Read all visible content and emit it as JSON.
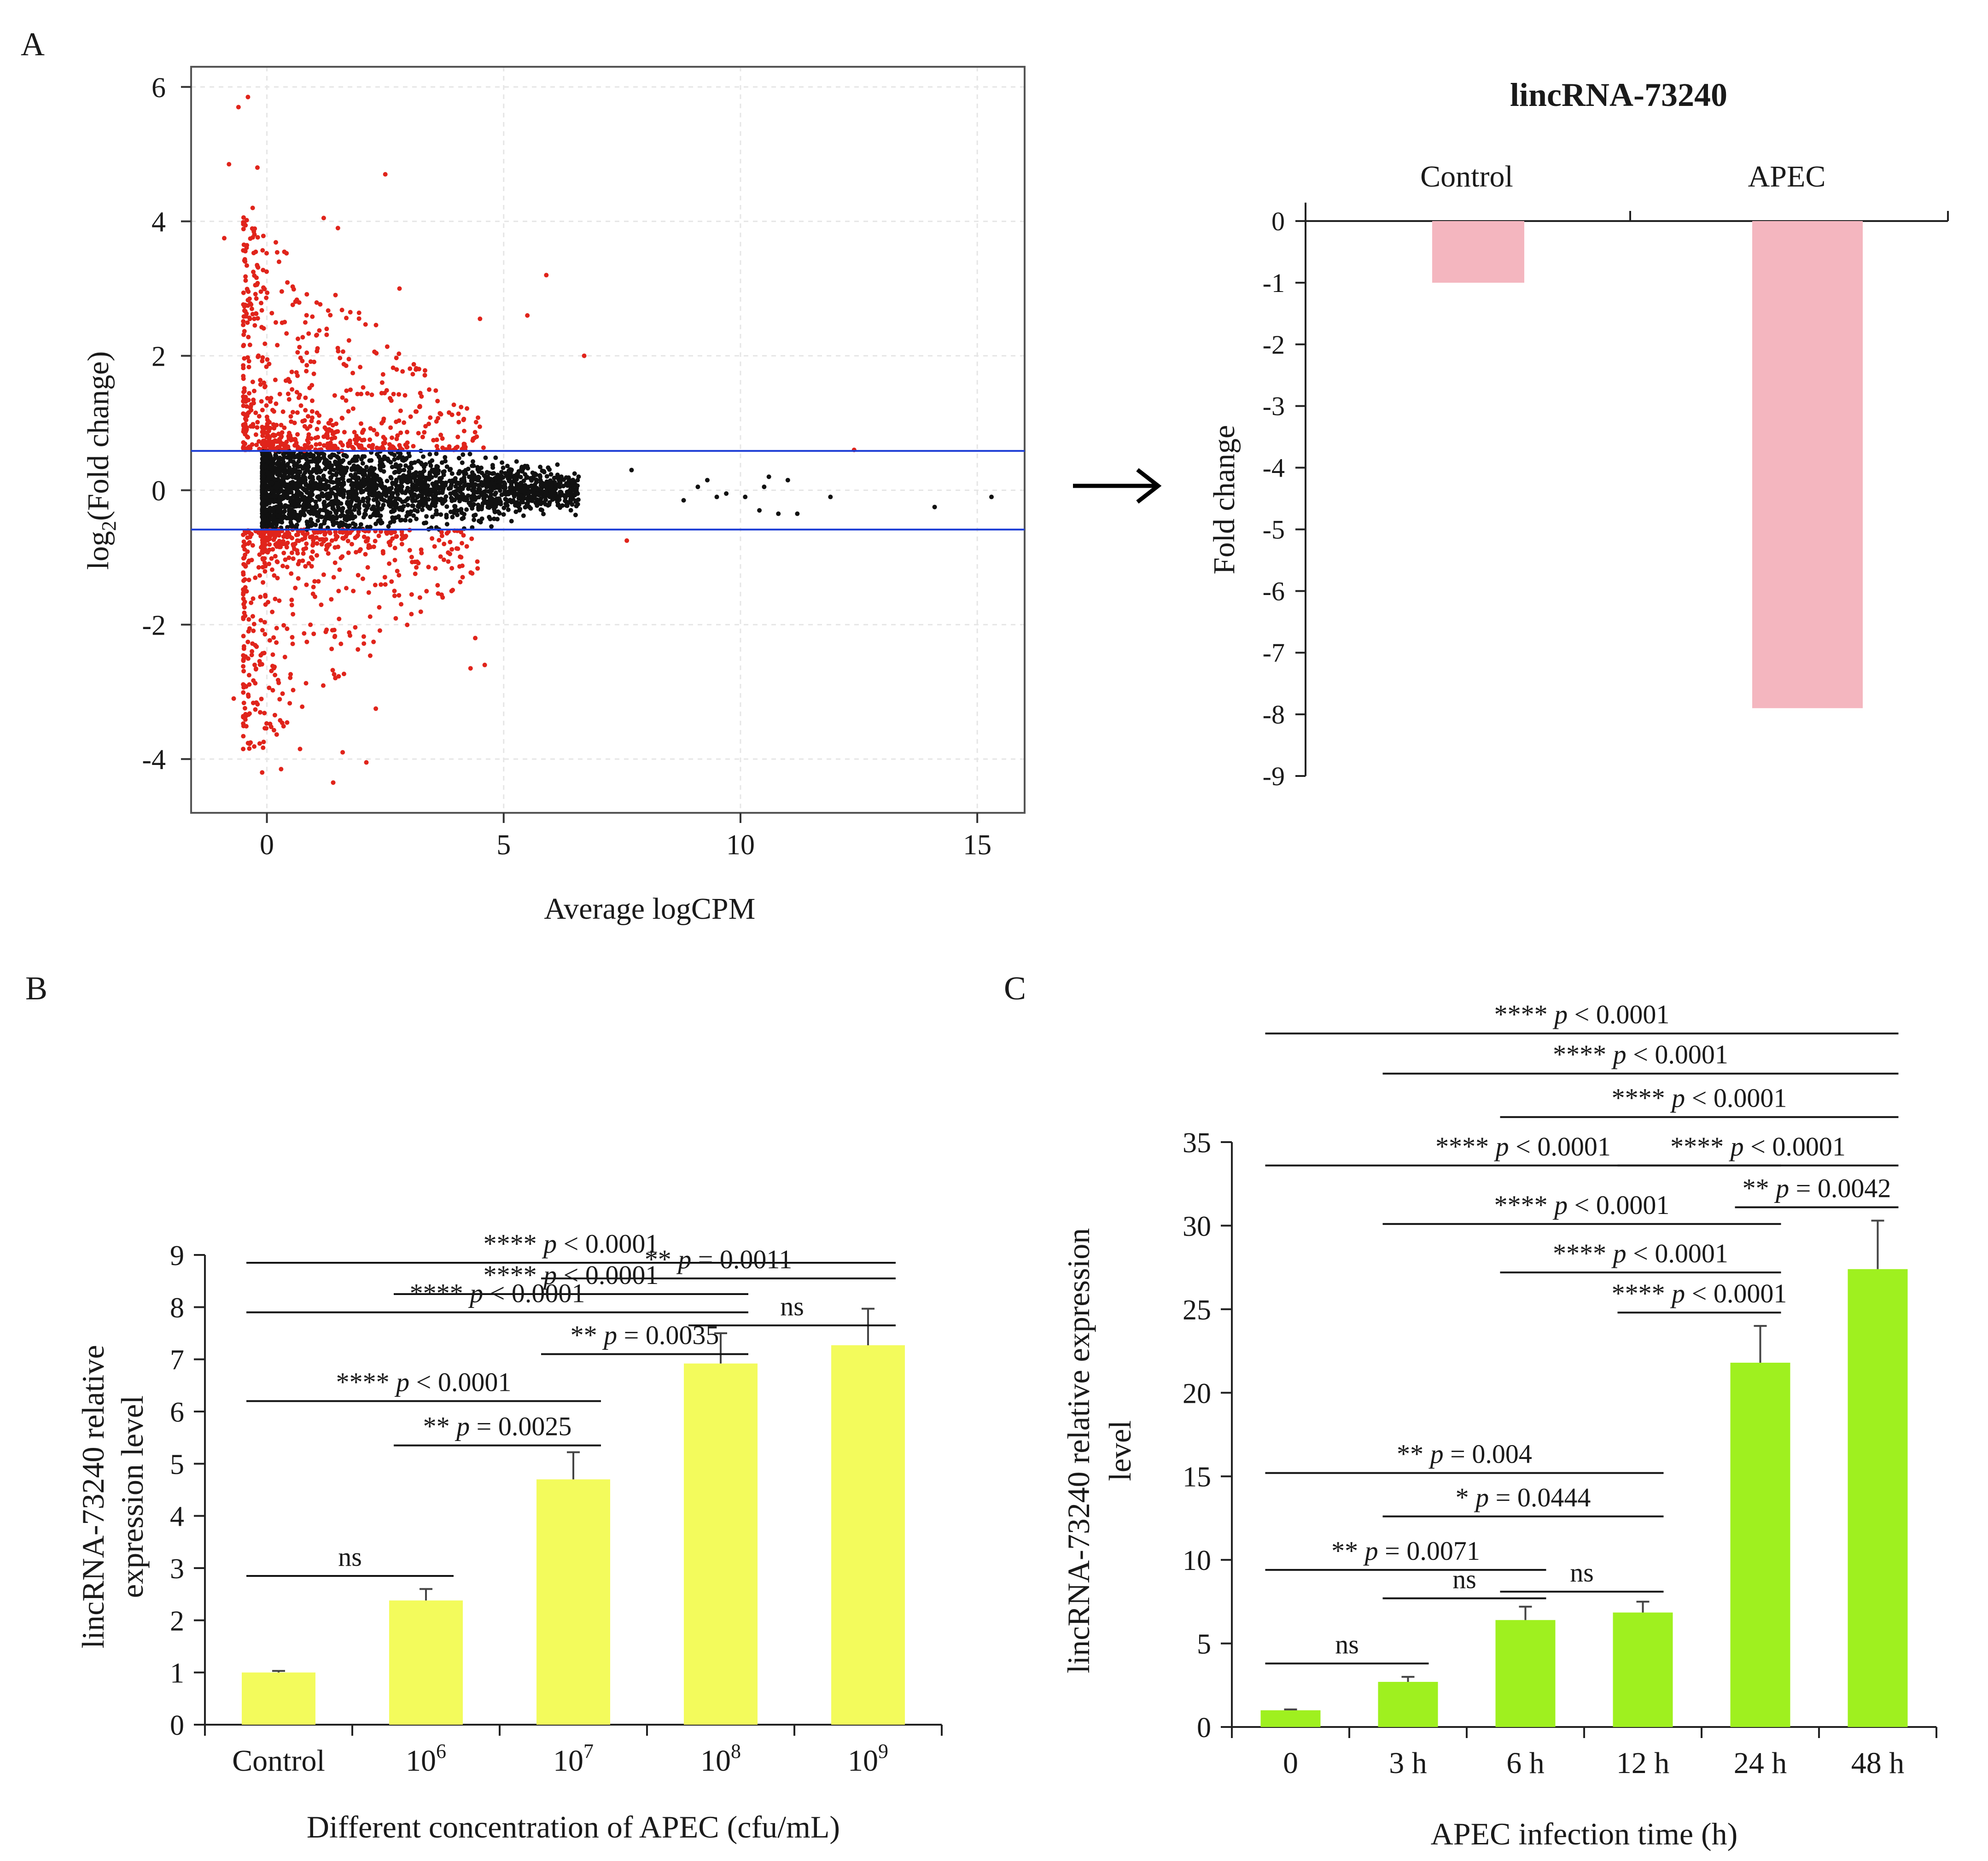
{
  "panel_labels": {
    "a": "A",
    "b": "B",
    "c": "C"
  },
  "chart_data": [
    {
      "id": "A-left",
      "type": "scatter",
      "title": "",
      "xlabel": "Average logCPM",
      "ylabel_main": "log",
      "ylabel_sub": "2",
      "ylabel_rest": "(Fold change)",
      "xlim": [
        -1.6,
        16
      ],
      "ylim": [
        -4.8,
        6.3
      ],
      "xticks": [
        0,
        5,
        10,
        15
      ],
      "yticks": [
        -4,
        -2,
        0,
        2,
        4,
        6
      ],
      "thresholds": [
        0.585,
        -0.585
      ],
      "threshold_color": "#1f3fd6",
      "sig_color": "#e0241b",
      "nonsig_color": "#111111",
      "outlier_points": [
        {
          "x": -0.6,
          "y": 5.7
        },
        {
          "x": -0.4,
          "y": 5.85
        },
        {
          "x": -0.8,
          "y": 4.85
        },
        {
          "x": -0.2,
          "y": 4.8
        },
        {
          "x": 2.5,
          "y": 4.7
        },
        {
          "x": -0.3,
          "y": 4.2
        },
        {
          "x": 1.2,
          "y": 4.05
        },
        {
          "x": -0.9,
          "y": 3.75
        },
        {
          "x": 1.5,
          "y": 3.9
        },
        {
          "x": 5.9,
          "y": 3.2
        },
        {
          "x": 2.8,
          "y": 3.0
        },
        {
          "x": 6.7,
          "y": 2.0
        },
        {
          "x": 5.5,
          "y": 2.6
        },
        {
          "x": 4.5,
          "y": 2.55
        },
        {
          "x": 12.4,
          "y": 0.6
        },
        {
          "x": -0.7,
          "y": -3.1
        },
        {
          "x": -0.5,
          "y": -3.85
        },
        {
          "x": -0.1,
          "y": -4.2
        },
        {
          "x": 0.3,
          "y": -4.15
        },
        {
          "x": 1.4,
          "y": -4.35
        },
        {
          "x": 2.1,
          "y": -4.05
        },
        {
          "x": 0.7,
          "y": -3.85
        },
        {
          "x": 1.6,
          "y": -3.9
        },
        {
          "x": 4.3,
          "y": -2.65
        },
        {
          "x": 4.6,
          "y": -2.6
        },
        {
          "x": 2.3,
          "y": -3.25
        },
        {
          "x": 7.6,
          "y": -0.75
        },
        {
          "x": 4.4,
          "y": -2.2
        },
        {
          "x": 3.9,
          "y": -1.5
        }
      ],
      "tail_points": [
        {
          "x": 7.7,
          "y": 0.3
        },
        {
          "x": 8.8,
          "y": -0.15
        },
        {
          "x": 9.1,
          "y": 0.05
        },
        {
          "x": 9.3,
          "y": 0.15
        },
        {
          "x": 9.5,
          "y": -0.1
        },
        {
          "x": 9.7,
          "y": -0.05
        },
        {
          "x": 10.1,
          "y": -0.1
        },
        {
          "x": 10.4,
          "y": -0.3
        },
        {
          "x": 10.5,
          "y": 0.05
        },
        {
          "x": 10.8,
          "y": -0.35
        },
        {
          "x": 10.6,
          "y": 0.2
        },
        {
          "x": 11.0,
          "y": 0.15
        },
        {
          "x": 11.2,
          "y": -0.35
        },
        {
          "x": 11.9,
          "y": -0.1
        },
        {
          "x": 14.1,
          "y": -0.25
        },
        {
          "x": 15.3,
          "y": -0.1
        }
      ]
    },
    {
      "id": "A-right",
      "type": "bar",
      "title": "lincRNA-73240",
      "ylabel": "Fold change",
      "categories": [
        "Control",
        "APEC"
      ],
      "values": [
        -1,
        -7.9
      ],
      "ylim": [
        -9,
        0
      ],
      "yticks": [
        0,
        -1,
        -2,
        -3,
        -4,
        -5,
        -6,
        -7,
        -8,
        -9
      ],
      "bar_color": "#f4b6bf",
      "axis_position": "top"
    },
    {
      "id": "B",
      "type": "bar",
      "xlabel": "Different concentration of APEC (cfu/mL)",
      "ylabel_line1": "lincRNA-73240 relative",
      "ylabel_line2": "expression level",
      "categories": [
        {
          "base": "Control",
          "exp": ""
        },
        {
          "base": "10",
          "exp": "6"
        },
        {
          "base": "10",
          "exp": "7"
        },
        {
          "base": "10",
          "exp": "8"
        },
        {
          "base": "10",
          "exp": "9"
        }
      ],
      "values": [
        1.0,
        2.38,
        4.7,
        6.92,
        7.27
      ],
      "errors": [
        0.03,
        0.22,
        0.52,
        0.58,
        0.7
      ],
      "ylim": [
        0,
        9
      ],
      "yticks": [
        0,
        1,
        2,
        3,
        4,
        5,
        6,
        7,
        8,
        9
      ],
      "bar_color": "#f3fb5c",
      "comparisons": [
        {
          "from": 0,
          "to": 4,
          "y": 8.85,
          "stars": "****",
          "p": "p",
          "op": "< 0.0001"
        },
        {
          "from": 2,
          "to": 4,
          "y": 8.55,
          "stars": "**",
          "p": "p",
          "op": "= 0.0011"
        },
        {
          "from": 1,
          "to": 3,
          "y": 8.25,
          "stars": "****",
          "p": "p",
          "op": "< 0.0001"
        },
        {
          "from": 0,
          "to": 3,
          "y": 7.9,
          "stars": "****",
          "p": "p",
          "op": "< 0.0001"
        },
        {
          "from": 3,
          "to": 4,
          "y": 7.65,
          "stars": "",
          "p": "",
          "op": "ns"
        },
        {
          "from": 2,
          "to": 3,
          "y": 7.1,
          "stars": "**",
          "p": "p",
          "op": "= 0.0035"
        },
        {
          "from": 0,
          "to": 2,
          "y": 6.2,
          "stars": "****",
          "p": "p",
          "op": "< 0.0001"
        },
        {
          "from": 1,
          "to": 2,
          "y": 5.35,
          "stars": "**",
          "p": "p",
          "op": "= 0.0025"
        },
        {
          "from": 0,
          "to": 1,
          "y": 2.85,
          "stars": "",
          "p": "",
          "op": "ns"
        }
      ]
    },
    {
      "id": "C",
      "type": "bar",
      "xlabel": "APEC infection time (h)",
      "ylabel_line1": "lincRNA-73240 relative expression",
      "ylabel_line2": "level",
      "categories": [
        "0",
        "3 h",
        "6 h",
        "12 h",
        "24 h",
        "48 h"
      ],
      "values": [
        1.0,
        2.7,
        6.4,
        6.85,
        21.8,
        27.4
      ],
      "errors": [
        0.05,
        0.3,
        0.8,
        0.65,
        2.2,
        2.9
      ],
      "ylim": [
        0,
        35
      ],
      "yticks": [
        0,
        5,
        10,
        15,
        20,
        25,
        30,
        35
      ],
      "bar_color": "#9ff01f",
      "comparisons": [
        {
          "from": 0,
          "to": 5,
          "y": 41.5,
          "stars": "****",
          "p": "p",
          "op": "< 0.0001"
        },
        {
          "from": 1,
          "to": 5,
          "y": 39.1,
          "stars": "****",
          "p": "p",
          "op": "< 0.0001"
        },
        {
          "from": 2,
          "to": 5,
          "y": 36.5,
          "stars": "****",
          "p": "p",
          "op": "< 0.0001"
        },
        {
          "from": 0,
          "to": 4,
          "y": 33.6,
          "stars": "****",
          "p": "p",
          "op": "< 0.0001"
        },
        {
          "from": 3,
          "to": 5,
          "y": 33.6,
          "stars": "****",
          "p": "p",
          "op": "< 0.0001"
        },
        {
          "from": 1,
          "to": 4,
          "y": 30.1,
          "stars": "****",
          "p": "p",
          "op": "< 0.0001"
        },
        {
          "from": 4,
          "to": 5,
          "y": 31.1,
          "stars": "**",
          "p": "p",
          "op": "= 0.0042"
        },
        {
          "from": 2,
          "to": 4,
          "y": 27.2,
          "stars": "****",
          "p": "p",
          "op": "< 0.0001"
        },
        {
          "from": 3,
          "to": 4,
          "y": 24.8,
          "stars": "****",
          "p": "p",
          "op": "< 0.0001"
        },
        {
          "from": 0,
          "to": 3,
          "y": 15.2,
          "stars": "**",
          "p": "p",
          "op": "= 0.004"
        },
        {
          "from": 1,
          "to": 3,
          "y": 12.6,
          "stars": "*",
          "p": "p",
          "op": "= 0.0444"
        },
        {
          "from": 0,
          "to": 2,
          "y": 9.4,
          "stars": "**",
          "p": "p",
          "op": "= 0.0071"
        },
        {
          "from": 1,
          "to": 2,
          "y": 7.7,
          "stars": "",
          "p": "",
          "op": "ns"
        },
        {
          "from": 2,
          "to": 3,
          "y": 8.1,
          "stars": "",
          "p": "",
          "op": "ns"
        },
        {
          "from": 0,
          "to": 1,
          "y": 3.8,
          "stars": "",
          "p": "",
          "op": "ns"
        }
      ]
    }
  ]
}
